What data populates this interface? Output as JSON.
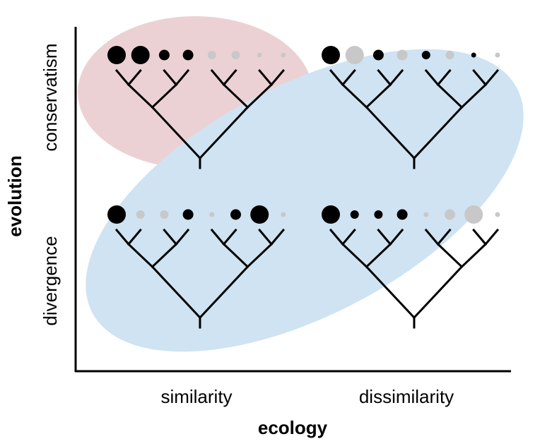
{
  "axes": {
    "x_title": "ecology",
    "y_title": "evolution",
    "x_categories": [
      "similarity",
      "dissimilarity"
    ],
    "y_categories": [
      "conservatism",
      "divergence"
    ]
  },
  "colors": {
    "pink_region": "#ecd1d4",
    "blue_region": "#cfe3f2",
    "black_dot": "#000000",
    "grey_dot": "#c8c8c8",
    "tree_line": "#000000"
  },
  "panels": [
    {
      "id": "conservatism-similarity",
      "tips": [
        [
          "black",
          4
        ],
        [
          "black",
          4
        ],
        [
          "black",
          2
        ],
        [
          "black",
          2
        ],
        [
          "grey",
          1
        ],
        [
          "grey",
          1
        ],
        [
          "grey",
          0
        ],
        [
          "grey",
          0
        ]
      ]
    },
    {
      "id": "conservatism-dissimilarity",
      "tips": [
        [
          "black",
          4
        ],
        [
          "grey",
          4
        ],
        [
          "black",
          2
        ],
        [
          "grey",
          2
        ],
        [
          "black",
          1
        ],
        [
          "grey",
          1
        ],
        [
          "black",
          0
        ],
        [
          "grey",
          0
        ]
      ]
    },
    {
      "id": "divergence-similarity",
      "tips": [
        [
          "black",
          4
        ],
        [
          "grey",
          1
        ],
        [
          "grey",
          1
        ],
        [
          "black",
          2
        ],
        [
          "grey",
          0
        ],
        [
          "black",
          2
        ],
        [
          "black",
          4
        ],
        [
          "grey",
          0
        ]
      ]
    },
    {
      "id": "divergence-dissimilarity",
      "tips": [
        [
          "black",
          4
        ],
        [
          "black",
          1
        ],
        [
          "black",
          1
        ],
        [
          "black",
          2
        ],
        [
          "grey",
          0
        ],
        [
          "grey",
          2
        ],
        [
          "grey",
          4
        ],
        [
          "grey",
          0
        ]
      ]
    }
  ]
}
